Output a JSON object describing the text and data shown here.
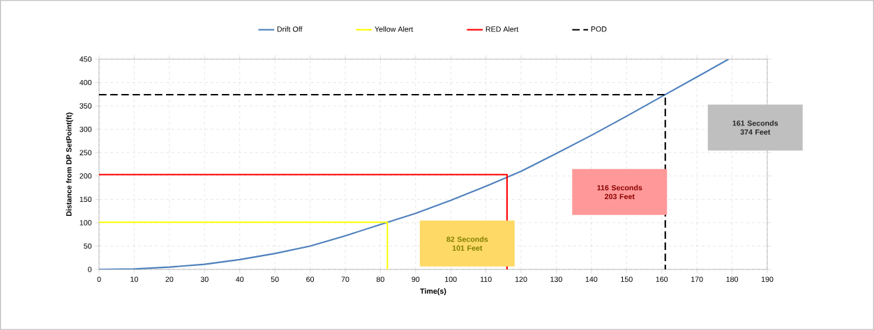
{
  "chart_data": {
    "type": "line",
    "xlabel": "Time(s)",
    "ylabel": "Distance from DP SetPoint(ft)",
    "xlim": [
      0,
      190
    ],
    "ylim": [
      0,
      450
    ],
    "xticks": [
      0,
      10,
      20,
      30,
      40,
      50,
      60,
      70,
      80,
      90,
      100,
      110,
      120,
      130,
      140,
      150,
      160,
      170,
      180,
      190
    ],
    "yticks": [
      0,
      50,
      100,
      150,
      200,
      250,
      300,
      350,
      400,
      450
    ],
    "grid": true,
    "legend": "top",
    "marker": "none",
    "series": [
      {
        "name": "Drift Off",
        "color": "#4f81bd",
        "x": [
          0,
          10,
          20,
          30,
          40,
          50,
          60,
          70,
          80,
          90,
          100,
          110,
          120,
          130,
          140,
          150,
          160,
          170,
          179
        ],
        "values": [
          0,
          1,
          5,
          11,
          21,
          34,
          50,
          72,
          96,
          120,
          148,
          178,
          210,
          248,
          287,
          328,
          370,
          412,
          450
        ]
      },
      {
        "name": "Yellow Alert",
        "color": "#ffff00",
        "x": [
          0,
          82,
          82
        ],
        "values": [
          101,
          101,
          0
        ]
      },
      {
        "name": "RED Alert",
        "color": "#ff0000",
        "x": [
          0,
          116,
          116
        ],
        "values": [
          203,
          203,
          0
        ]
      },
      {
        "name": "POD",
        "color": "#000000",
        "line_style": "dashed",
        "x": [
          0,
          161,
          161
        ],
        "values": [
          374,
          374,
          0
        ]
      }
    ],
    "annotations": [
      "82 Seconds 101 Feet",
      "116 Seconds 203 Feet",
      "161 Seconds 374 Feet"
    ]
  }
}
